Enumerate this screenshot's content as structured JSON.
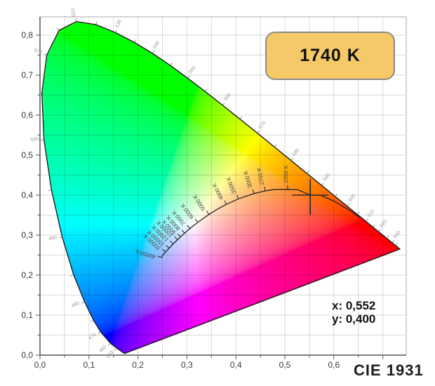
{
  "window": {
    "background": "#ffffff"
  },
  "cct_box": {
    "label": "1740 K",
    "fill": "#f6c968",
    "border_color": "#8b8b8b",
    "text_color": "#111111"
  },
  "readout": {
    "x_label": "x: 0,552",
    "y_label": "y: 0,400"
  },
  "diagram_label": "CIE 1931",
  "colors": {
    "axis": "#555555",
    "frame": "#aaaaaa",
    "grid": "rgba(0,0,0,0.14)",
    "tick_text": "#3a3a3a",
    "locus_outline": "#1a1a1a",
    "planckian": "#222222",
    "wavelength_text": "#999999",
    "temperature_text": "#444444",
    "marker": "#2b2b2b"
  },
  "chart_data": {
    "type": "area",
    "subtype": "CIE 1931 xy chromaticity diagram",
    "title": "CIE 1931",
    "xlabel": "",
    "ylabel": "",
    "xlim": [
      0,
      0.748
    ],
    "ylim": [
      0,
      0.845
    ],
    "grid": true,
    "grid_step": 0.05,
    "x_ticks": [
      {
        "v": 0.0,
        "label": "0,0"
      },
      {
        "v": 0.1,
        "label": "0,1"
      },
      {
        "v": 0.2,
        "label": "0,2"
      },
      {
        "v": 0.3,
        "label": "0,3"
      },
      {
        "v": 0.4,
        "label": "0,4"
      },
      {
        "v": 0.5,
        "label": "0,5"
      },
      {
        "v": 0.6,
        "label": "0,6"
      }
    ],
    "y_ticks": [
      {
        "v": 0.0,
        "label": "0,0"
      },
      {
        "v": 0.1,
        "label": "0,1"
      },
      {
        "v": 0.2,
        "label": "0,2"
      },
      {
        "v": 0.3,
        "label": "0,3"
      },
      {
        "v": 0.4,
        "label": "0,4"
      },
      {
        "v": 0.5,
        "label": "0,5"
      },
      {
        "v": 0.6,
        "label": "0,6"
      },
      {
        "v": 0.7,
        "label": "0,7"
      },
      {
        "v": 0.8,
        "label": "0,8"
      }
    ],
    "marker": {
      "x": 0.552,
      "y": 0.4,
      "cct_k": 1740,
      "cct_label": "1740 K"
    },
    "wavelength_labels_nm": [
      450,
      460,
      470,
      480,
      490,
      500,
      510,
      520,
      530,
      540,
      550,
      560,
      570,
      580,
      590,
      600,
      610,
      620,
      640
    ],
    "spectral_locus_xy": [
      [
        380,
        0.1741,
        0.005
      ],
      [
        390,
        0.1738,
        0.0049
      ],
      [
        400,
        0.1733,
        0.0048
      ],
      [
        410,
        0.1726,
        0.0048
      ],
      [
        420,
        0.1714,
        0.0051
      ],
      [
        430,
        0.1689,
        0.0069
      ],
      [
        440,
        0.1644,
        0.0109
      ],
      [
        450,
        0.1566,
        0.0177
      ],
      [
        460,
        0.144,
        0.0297
      ],
      [
        470,
        0.1241,
        0.0578
      ],
      [
        475,
        0.1096,
        0.0868
      ],
      [
        480,
        0.0913,
        0.1327
      ],
      [
        485,
        0.0687,
        0.2007
      ],
      [
        490,
        0.0454,
        0.295
      ],
      [
        495,
        0.0235,
        0.4127
      ],
      [
        500,
        0.0082,
        0.5384
      ],
      [
        505,
        0.0039,
        0.6548
      ],
      [
        510,
        0.0139,
        0.7502
      ],
      [
        515,
        0.0389,
        0.812
      ],
      [
        520,
        0.0743,
        0.8338
      ],
      [
        525,
        0.1142,
        0.8262
      ],
      [
        530,
        0.1547,
        0.8059
      ],
      [
        535,
        0.1929,
        0.7816
      ],
      [
        540,
        0.2296,
        0.7543
      ],
      [
        545,
        0.2658,
        0.7243
      ],
      [
        550,
        0.3016,
        0.6923
      ],
      [
        555,
        0.3373,
        0.6589
      ],
      [
        560,
        0.3731,
        0.6245
      ],
      [
        565,
        0.4087,
        0.5896
      ],
      [
        570,
        0.4441,
        0.5547
      ],
      [
        575,
        0.4788,
        0.5202
      ],
      [
        580,
        0.5125,
        0.4866
      ],
      [
        585,
        0.5448,
        0.4544
      ],
      [
        590,
        0.5752,
        0.4242
      ],
      [
        595,
        0.6029,
        0.3965
      ],
      [
        600,
        0.627,
        0.3725
      ],
      [
        605,
        0.6482,
        0.3514
      ],
      [
        610,
        0.6658,
        0.334
      ],
      [
        615,
        0.6801,
        0.3197
      ],
      [
        620,
        0.6915,
        0.3083
      ],
      [
        630,
        0.7079,
        0.292
      ],
      [
        640,
        0.719,
        0.2809
      ],
      [
        650,
        0.726,
        0.274
      ],
      [
        660,
        0.73,
        0.27
      ],
      [
        680,
        0.7334,
        0.2666
      ],
      [
        700,
        0.7347,
        0.2653
      ]
    ],
    "planckian_locus_xy": [
      [
        1000,
        0.6528,
        0.3444
      ],
      [
        1200,
        0.6251,
        0.3675
      ],
      [
        1400,
        0.5985,
        0.3858
      ],
      [
        1600,
        0.5732,
        0.3993
      ],
      [
        1740,
        0.552,
        0.4
      ],
      [
        2000,
        0.5267,
        0.4133
      ],
      [
        2200,
        0.5056,
        0.4146
      ],
      [
        2500,
        0.477,
        0.4137
      ],
      [
        2700,
        0.4599,
        0.4106
      ],
      [
        3000,
        0.4369,
        0.4041
      ],
      [
        3500,
        0.4053,
        0.3907
      ],
      [
        4000,
        0.3805,
        0.3768
      ],
      [
        4500,
        0.3608,
        0.3636
      ],
      [
        5000,
        0.3451,
        0.3516
      ],
      [
        5500,
        0.3325,
        0.3411
      ],
      [
        6000,
        0.3221,
        0.3318
      ],
      [
        6500,
        0.3135,
        0.3237
      ],
      [
        7000,
        0.3064,
        0.3166
      ],
      [
        8000,
        0.2952,
        0.3048
      ],
      [
        9000,
        0.2869,
        0.2956
      ],
      [
        10000,
        0.2807,
        0.2884
      ],
      [
        12000,
        0.272,
        0.2781
      ],
      [
        15000,
        0.2637,
        0.2673
      ],
      [
        20000,
        0.2565,
        0.2577
      ],
      [
        30000,
        0.2501,
        0.2489
      ],
      [
        40000,
        0.2487,
        0.2438
      ]
    ],
    "temperature_ticks": [
      {
        "T": 2200,
        "label": "2200 K"
      },
      {
        "T": 2700,
        "label": "2700 K"
      },
      {
        "T": 3000,
        "label": "3000 K"
      },
      {
        "T": 3500,
        "label": "3500 K"
      },
      {
        "T": 4000,
        "label": "4000 K"
      },
      {
        "T": 5000,
        "label": "5000 K"
      },
      {
        "T": 6000,
        "label": "6000 K"
      },
      {
        "T": 7000,
        "label": "7000 K"
      },
      {
        "T": 8000,
        "label": "8000 K"
      },
      {
        "T": 9000,
        "label": "9000 K"
      },
      {
        "T": 10000,
        "label": "10000 K"
      },
      {
        "T": 12000,
        "label": "12000 K"
      },
      {
        "T": 15000,
        "label": "15000 K"
      },
      {
        "T": 20000,
        "label": "20000 K"
      },
      {
        "T": 40000,
        "label": "40000 K"
      }
    ]
  }
}
